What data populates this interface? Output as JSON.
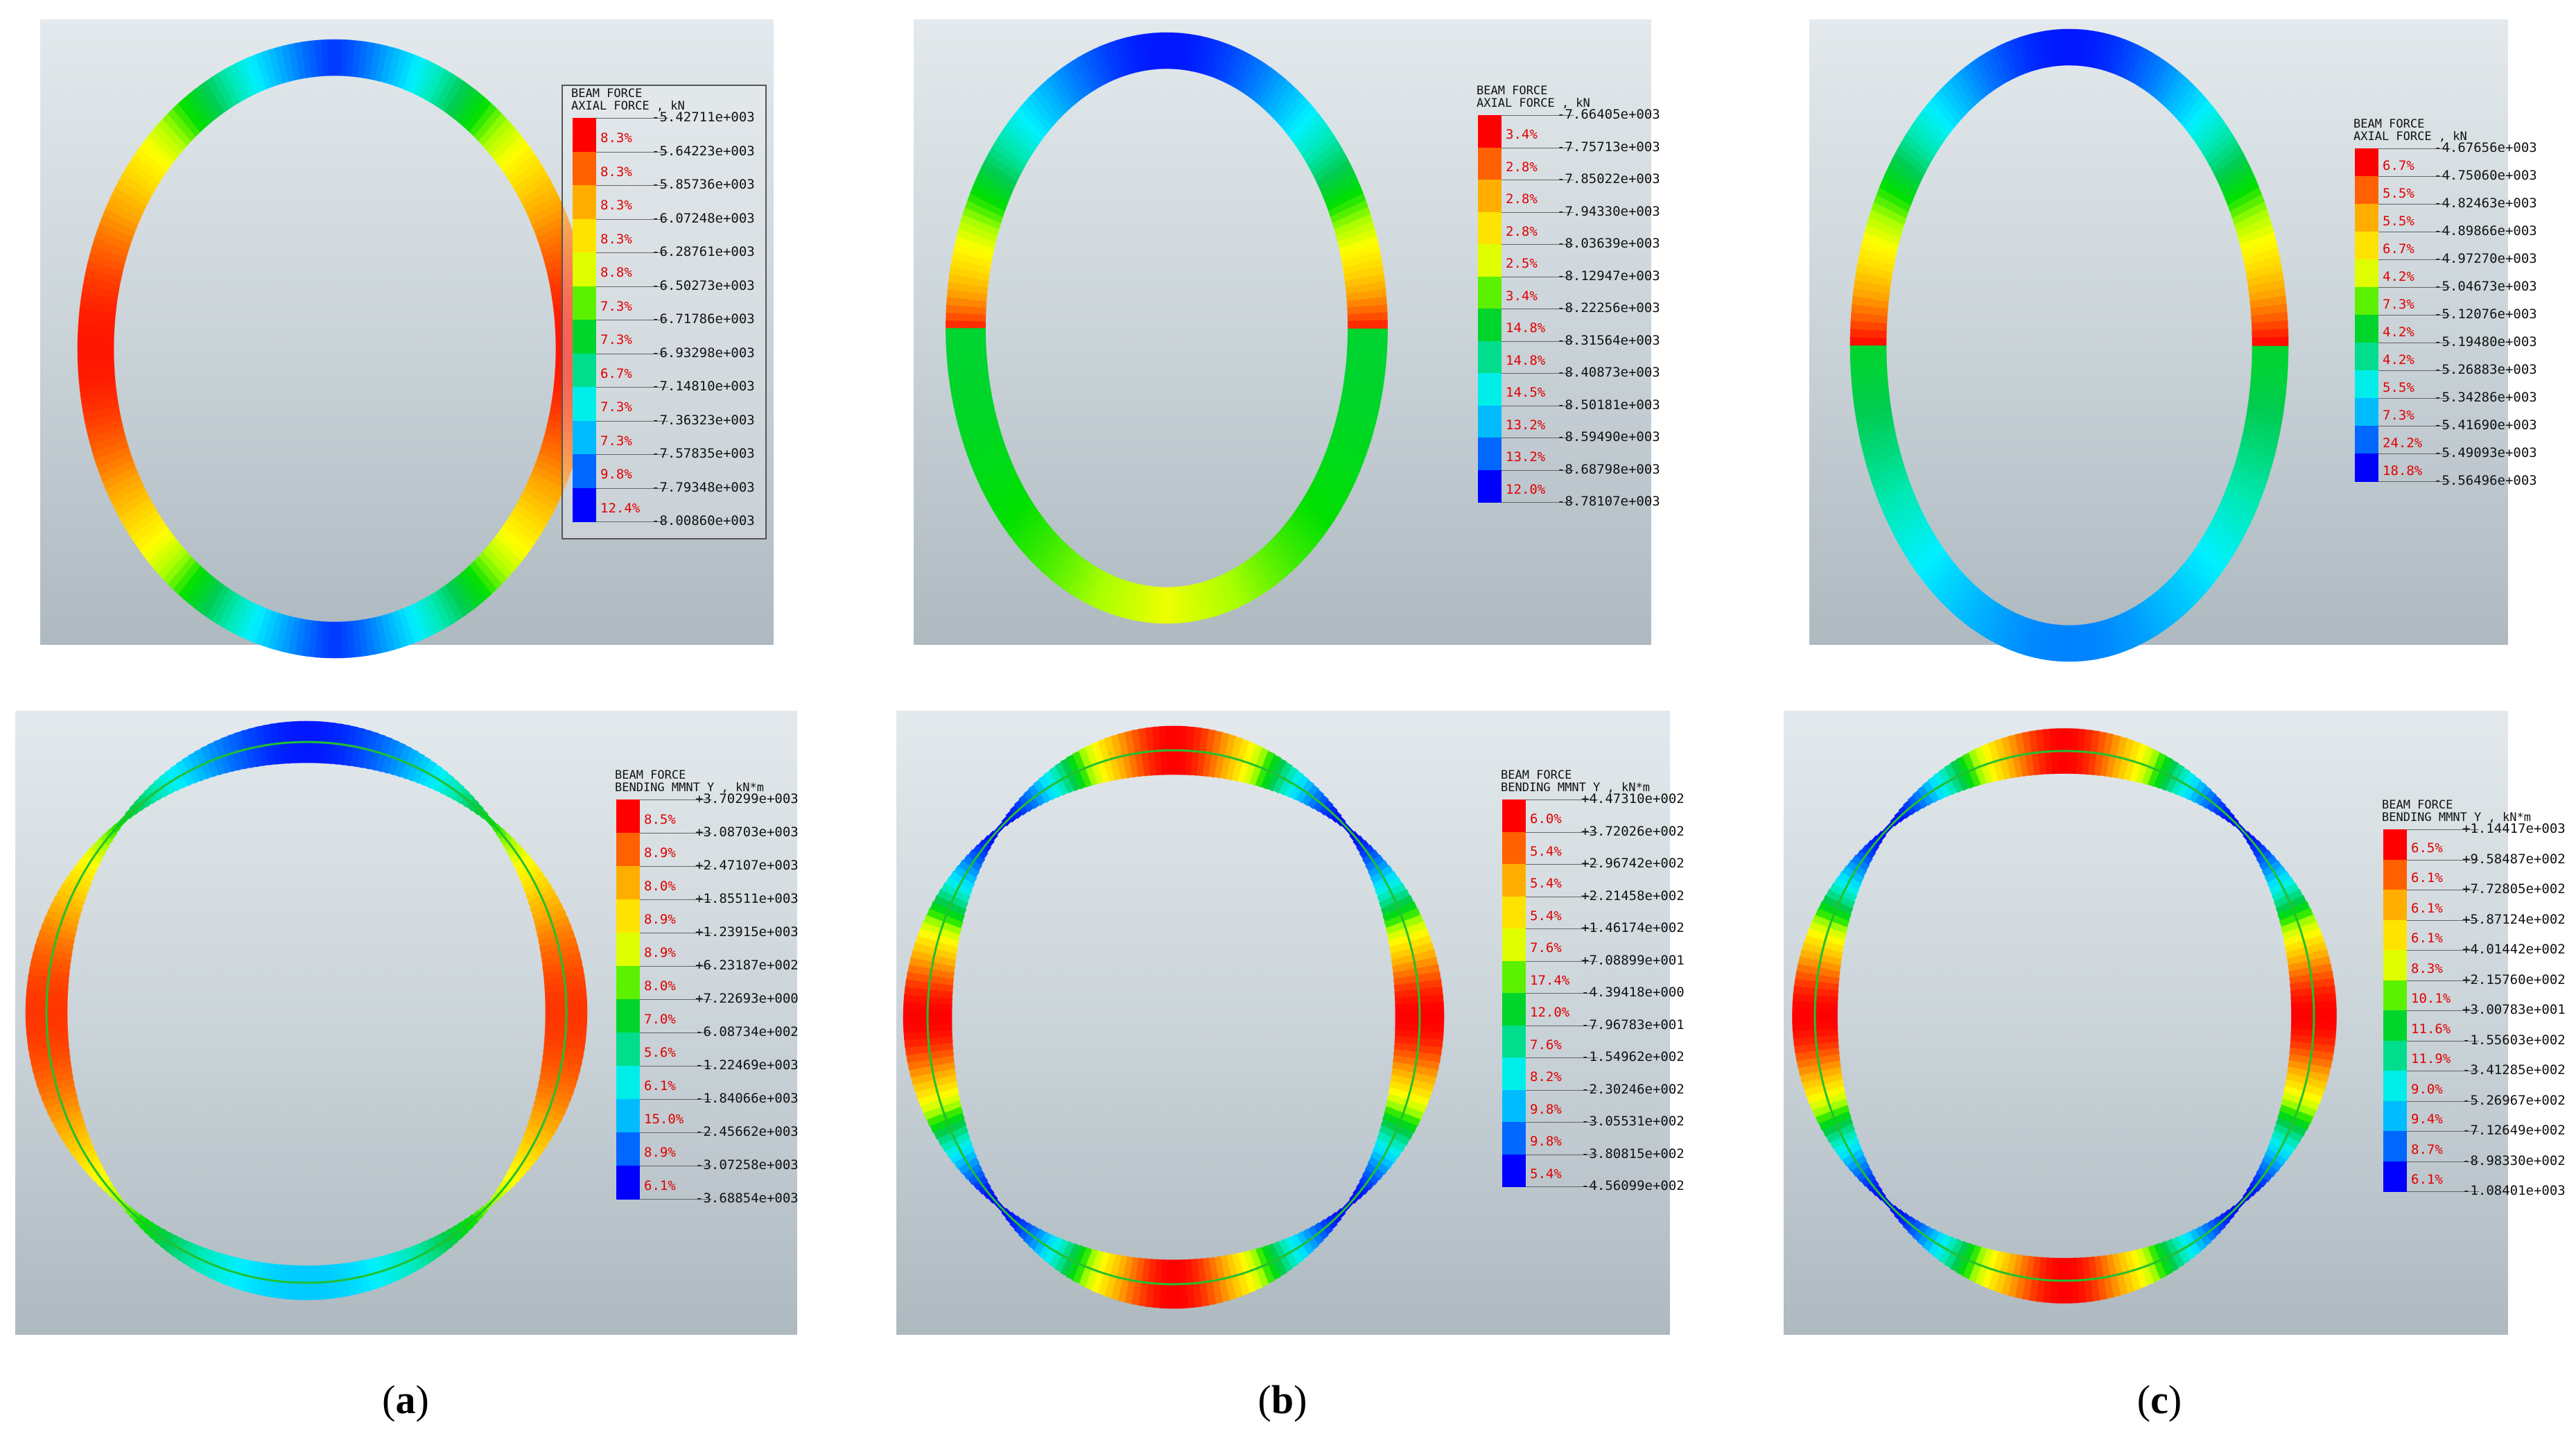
{
  "captions": [
    "a",
    "b",
    "c"
  ],
  "color_scale": [
    "#ff0000",
    "#ff5a00",
    "#ffa500",
    "#ffd800",
    "#ffff00",
    "#a8ff00",
    "#00e000",
    "#00cc50",
    "#00e8b0",
    "#00f0ff",
    "#00b0ff",
    "#0060ff",
    "#0000ff"
  ],
  "panels": [
    {
      "id": "a-axial",
      "title1": "BEAM FORCE",
      "title2": "AXIAL FORCE , kN",
      "values": [
        "-5.42711e+003",
        "-5.64223e+003",
        "-5.85736e+003",
        "-6.07248e+003",
        "-6.28761e+003",
        "-6.50273e+003",
        "-6.71786e+003",
        "-6.93298e+003",
        "-7.14810e+003",
        "-7.36323e+003",
        "-7.57835e+003",
        "-7.79348e+003",
        "-8.00860e+003"
      ],
      "percentages": [
        "8.3%",
        "8.3%",
        "8.3%",
        "8.3%",
        "8.8%",
        "7.3%",
        "7.3%",
        "6.7%",
        "7.3%",
        "7.3%",
        "9.8%",
        "12.4%"
      ]
    },
    {
      "id": "b-axial",
      "title1": "BEAM FORCE",
      "title2": "AXIAL FORCE , kN",
      "values": [
        "-7.66405e+003",
        "-7.75713e+003",
        "-7.85022e+003",
        "-7.94330e+003",
        "-8.03639e+003",
        "-8.12947e+003",
        "-8.22256e+003",
        "-8.31564e+003",
        "-8.40873e+003",
        "-8.50181e+003",
        "-8.59490e+003",
        "-8.68798e+003",
        "-8.78107e+003"
      ],
      "percentages": [
        "3.4%",
        "2.8%",
        "2.8%",
        "2.8%",
        "2.5%",
        "3.4%",
        "14.8%",
        "14.8%",
        "14.5%",
        "13.2%",
        "13.2%",
        "12.0%"
      ]
    },
    {
      "id": "c-axial",
      "title1": "BEAM FORCE",
      "title2": "AXIAL FORCE , kN",
      "values": [
        "-4.67656e+003",
        "-4.75060e+003",
        "-4.82463e+003",
        "-4.89866e+003",
        "-4.97270e+003",
        "-5.04673e+003",
        "-5.12076e+003",
        "-5.19480e+003",
        "-5.26883e+003",
        "-5.34286e+003",
        "-5.41690e+003",
        "-5.49093e+003",
        "-5.56496e+003"
      ],
      "percentages": [
        "6.7%",
        "5.5%",
        "5.5%",
        "6.7%",
        "4.2%",
        "7.3%",
        "4.2%",
        "4.2%",
        "5.5%",
        "7.3%",
        "24.2%",
        "18.8%"
      ]
    },
    {
      "id": "a-moment",
      "title1": "BEAM FORCE",
      "title2": "BENDING MMNT Y , kN*m",
      "values": [
        "+3.70299e+003",
        "+3.08703e+003",
        "+2.47107e+003",
        "+1.85511e+003",
        "+1.23915e+003",
        "+6.23187e+002",
        "+7.22693e+000",
        "-6.08734e+002",
        "-1.22469e+003",
        "-1.84066e+003",
        "-2.45662e+003",
        "-3.07258e+003",
        "-3.68854e+003"
      ],
      "percentages": [
        "8.5%",
        "8.9%",
        "8.0%",
        "8.9%",
        "8.9%",
        "8.0%",
        "7.0%",
        "5.6%",
        "6.1%",
        "15.0%",
        "8.9%",
        "6.1%"
      ]
    },
    {
      "id": "b-moment",
      "title1": "BEAM FORCE",
      "title2": "BENDING MMNT Y , kN*m",
      "values": [
        "+4.47310e+002",
        "+3.72026e+002",
        "+2.96742e+002",
        "+2.21458e+002",
        "+1.46174e+002",
        "+7.08899e+001",
        "-4.39418e+000",
        "-7.96783e+001",
        "-1.54962e+002",
        "-2.30246e+002",
        "-3.05531e+002",
        "-3.80815e+002",
        "-4.56099e+002"
      ],
      "percentages": [
        "6.0%",
        "5.4%",
        "5.4%",
        "5.4%",
        "7.6%",
        "17.4%",
        "12.0%",
        "7.6%",
        "8.2%",
        "9.8%",
        "9.8%",
        "5.4%"
      ]
    },
    {
      "id": "c-moment",
      "title1": "BEAM FORCE",
      "title2": "BENDING MMNT Y , kN*m",
      "values": [
        "+1.14417e+003",
        "+9.58487e+002",
        "+7.72805e+002",
        "+5.87124e+002",
        "+4.01442e+002",
        "+2.15760e+002",
        "+3.00783e+001",
        "-1.55603e+002",
        "-3.41285e+002",
        "-5.26967e+002",
        "-7.12649e+002",
        "-8.98330e+002",
        "-1.08401e+003"
      ],
      "percentages": [
        "6.5%",
        "6.1%",
        "6.1%",
        "6.1%",
        "8.3%",
        "10.1%",
        "11.6%",
        "11.9%",
        "9.0%",
        "9.4%",
        "8.7%",
        "6.1%"
      ]
    }
  ]
}
